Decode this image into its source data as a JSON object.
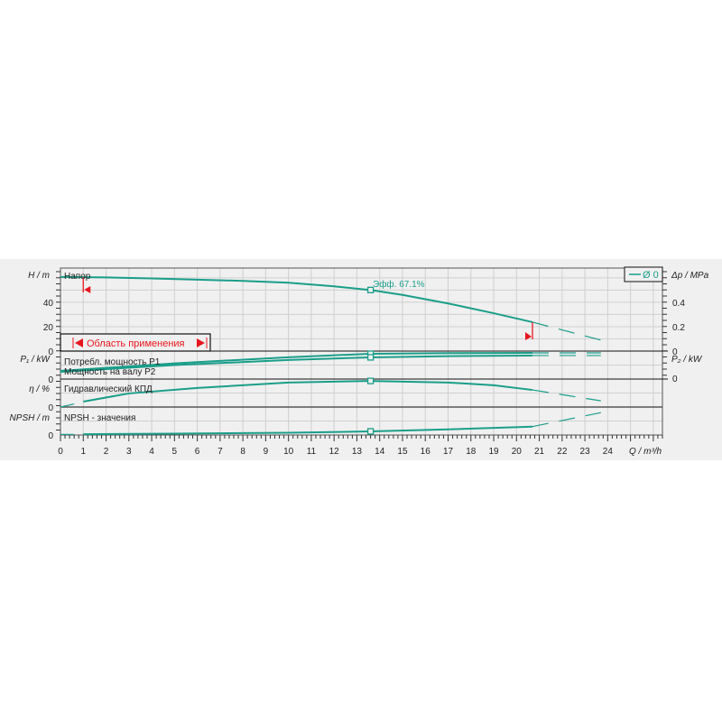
{
  "colors": {
    "curve": "#1a9e8a",
    "range_marker": "#e8161e",
    "grid": "#cfcfcf",
    "background": "#f0f0f0"
  },
  "legend": {
    "entry": "Ø 0",
    "placement": "top-right"
  },
  "labels": {
    "head": "Напор",
    "efficiency_point": "Эфф.  67.1%",
    "operating_range": "Область применения",
    "p1": "Потребл. мощность P1",
    "p2": "Мощность на валу P2",
    "hydraulic_eff": "Гидравлический КПД",
    "npsh": "NPSH - значения"
  },
  "chart_data": [
    {
      "type": "line",
      "panel": "head",
      "ylabel": "H / m",
      "ylabel_right": "Δp / MPa",
      "xlabel": "Q / m³/h",
      "xlim": [
        0,
        26.4
      ],
      "ylim": [
        0,
        68
      ],
      "yticks": [
        0,
        20,
        40
      ],
      "yticks_right": [
        0,
        0.2,
        0.4
      ],
      "xticks": [
        0,
        1,
        2,
        3,
        4,
        5,
        6,
        7,
        8,
        9,
        10,
        11,
        12,
        13,
        14,
        15,
        16,
        17,
        18,
        19,
        20,
        21,
        22,
        23,
        24
      ],
      "grid": true,
      "x": [
        0,
        2,
        4,
        6,
        8,
        10,
        12,
        13.6,
        15,
        17,
        19,
        20.7
      ],
      "y": [
        60.7,
        60.3,
        59.5,
        58.5,
        57.5,
        56,
        53,
        50,
        46,
        39,
        31,
        23.7
      ],
      "extension_x": [
        20.7,
        23.7
      ],
      "extension_y": [
        23.7,
        9
      ],
      "operating_point": {
        "q": 13.6,
        "h": 50,
        "efficiency_pct": 67.1
      },
      "range_limits": [
        1,
        20.7
      ]
    },
    {
      "type": "line",
      "panel": "power",
      "ylabel": "P₁ / kW",
      "ylabel_right": "P₂ / kW",
      "yticks": [
        0
      ],
      "ylim": [
        0,
        2.5
      ],
      "series": [
        {
          "name": "Потребл. мощность P1",
          "x": [
            0,
            5,
            10,
            13.6,
            17,
            20.7
          ],
          "y": [
            0.73,
            1.4,
            1.95,
            2.26,
            2.32,
            2.34
          ],
          "ext_y": 2.34
        },
        {
          "name": "Мощность на валу P2",
          "x": [
            0,
            5,
            10,
            13.6,
            17,
            20.7
          ],
          "y": [
            0.65,
            1.25,
            1.7,
            1.94,
            2.05,
            2.1
          ],
          "ext_y": 2.1
        }
      ]
    },
    {
      "type": "line",
      "panel": "efficiency",
      "ylabel": "η / %",
      "yticks": [
        0
      ],
      "ylim": [
        0,
        72
      ],
      "x": [
        1,
        3,
        6,
        10,
        13.6,
        17,
        19,
        20.7
      ],
      "y": [
        14,
        35,
        49,
        63,
        67.1,
        63,
        56,
        44
      ],
      "start_ext": {
        "x": [
          0,
          0.6
        ],
        "y": [
          0,
          8
        ]
      },
      "extension_x": [
        20.7,
        23.7
      ],
      "extension_y": [
        44,
        16
      ]
    },
    {
      "type": "line",
      "panel": "npsh",
      "ylabel": "NPSH / m",
      "yticks": [
        0
      ],
      "ylim": [
        0,
        10
      ],
      "x": [
        1,
        5,
        10,
        13.6,
        17,
        20.7
      ],
      "y": [
        0.3,
        0.5,
        0.8,
        1.3,
        2,
        3
      ],
      "start_ext": {
        "x": [
          0,
          0.6
        ],
        "y": [
          0.2,
          0.2
        ]
      },
      "extension_x": [
        20.7,
        23.7
      ],
      "extension_y": [
        3,
        8
      ]
    }
  ]
}
